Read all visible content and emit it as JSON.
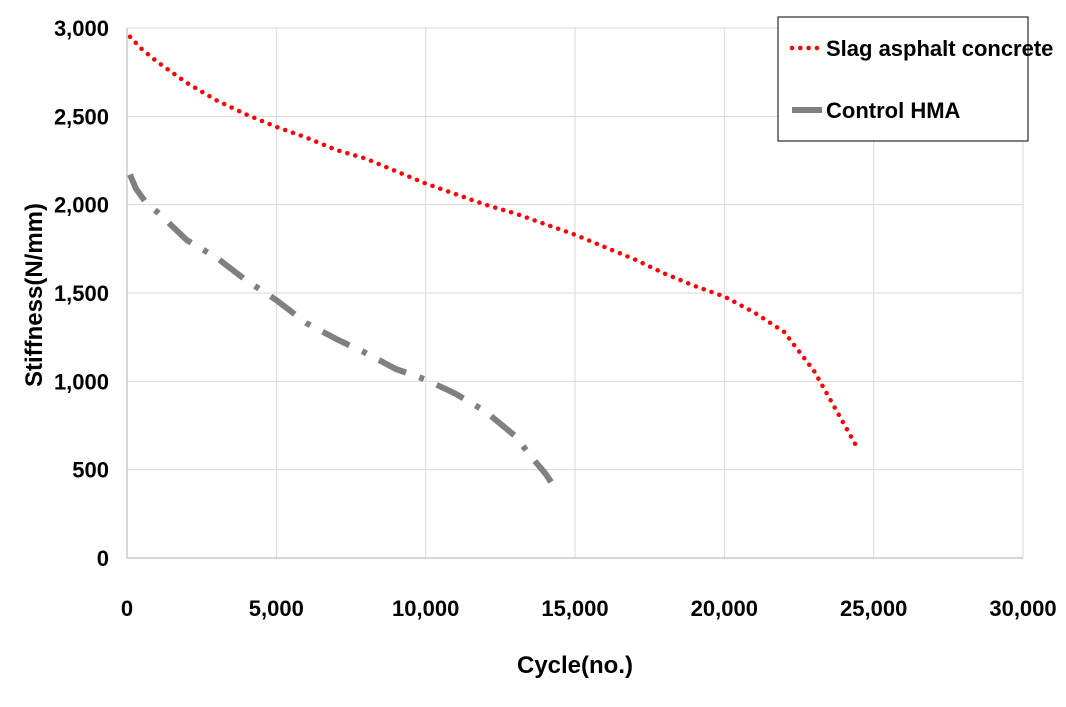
{
  "chart_data": {
    "type": "line",
    "title": "",
    "xlabel": "Cycle(no.)",
    "ylabel": "Stiffness(N/mm)",
    "xlim": [
      0,
      30000
    ],
    "ylim": [
      0,
      3000
    ],
    "x_ticks": [
      0,
      5000,
      10000,
      15000,
      20000,
      25000,
      30000
    ],
    "x_tick_labels": [
      "0",
      "5,000",
      "10,000",
      "15,000",
      "20,000",
      "25,000",
      "30,000"
    ],
    "y_ticks": [
      0,
      500,
      1000,
      1500,
      2000,
      2500,
      3000
    ],
    "y_tick_labels": [
      "0",
      "500",
      "1,000",
      "1,500",
      "2,000",
      "2,500",
      "3,000"
    ],
    "grid": true,
    "legend_position": "top-right",
    "series": [
      {
        "name": "Slag asphalt concrete",
        "color": "#ff0000",
        "line_style": "dotted",
        "x": [
          100,
          500,
          1000,
          2000,
          3000,
          4000,
          5000,
          6000,
          7000,
          8000,
          9000,
          10000,
          11000,
          12000,
          13000,
          14000,
          15000,
          16000,
          17000,
          18000,
          19000,
          20000,
          21000,
          22000,
          22500,
          23000,
          23500,
          24000,
          24500
        ],
        "y": [
          2950,
          2880,
          2810,
          2690,
          2590,
          2510,
          2440,
          2380,
          2310,
          2260,
          2190,
          2120,
          2060,
          2000,
          1950,
          1890,
          1830,
          1760,
          1690,
          1610,
          1540,
          1480,
          1390,
          1280,
          1170,
          1060,
          910,
          760,
          610
        ]
      },
      {
        "name": "Control HMA",
        "color": "#808080",
        "line_style": "dash-dot",
        "x": [
          100,
          300,
          600,
          1000,
          2000,
          3000,
          4000,
          5000,
          6000,
          7000,
          8000,
          9000,
          10000,
          11000,
          12000,
          13000,
          13500,
          14000,
          14200
        ],
        "y": [
          2170,
          2090,
          2020,
          1960,
          1800,
          1700,
          1570,
          1460,
          1330,
          1240,
          1160,
          1070,
          1010,
          930,
          830,
          690,
          580,
          480,
          430
        ]
      }
    ]
  }
}
